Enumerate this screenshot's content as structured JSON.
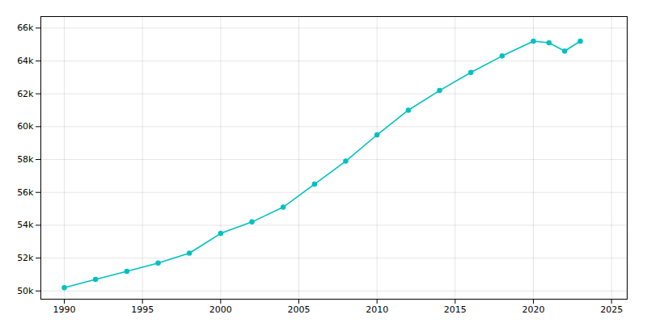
{
  "chart_data": {
    "type": "line",
    "x": [
      1990,
      1992,
      1994,
      1996,
      1998,
      2000,
      2002,
      2004,
      2006,
      2008,
      2010,
      2012,
      2014,
      2016,
      2018,
      2020,
      2021,
      2022,
      2023
    ],
    "values": [
      50200,
      50700,
      51200,
      51700,
      52300,
      53500,
      54200,
      55100,
      56500,
      57900,
      59500,
      61000,
      62200,
      63300,
      64300,
      65200,
      65100,
      64600,
      65200
    ],
    "color": "#00C0C0",
    "marker": "circle",
    "xlim": [
      1988.5,
      2026
    ],
    "ylim": [
      49500,
      66700
    ],
    "xticks": [
      1990,
      1995,
      2000,
      2005,
      2010,
      2015,
      2020,
      2025
    ],
    "yticks": [
      {
        "value": 50000,
        "label": "50k"
      },
      {
        "value": 52000,
        "label": "52k"
      },
      {
        "value": 54000,
        "label": "54k"
      },
      {
        "value": 56000,
        "label": "56k"
      },
      {
        "value": 58000,
        "label": "58k"
      },
      {
        "value": 60000,
        "label": "60k"
      },
      {
        "value": 62000,
        "label": "62k"
      },
      {
        "value": 64000,
        "label": "64k"
      },
      {
        "value": 66000,
        "label": "66k"
      }
    ],
    "grid": true
  }
}
